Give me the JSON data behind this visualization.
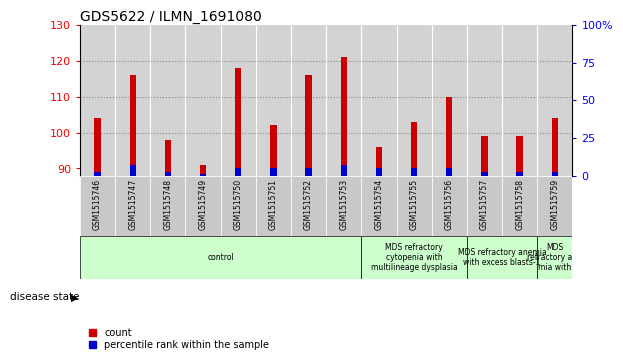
{
  "title": "GDS5622 / ILMN_1691080",
  "samples": [
    "GSM1515746",
    "GSM1515747",
    "GSM1515748",
    "GSM1515749",
    "GSM1515750",
    "GSM1515751",
    "GSM1515752",
    "GSM1515753",
    "GSM1515754",
    "GSM1515755",
    "GSM1515756",
    "GSM1515757",
    "GSM1515758",
    "GSM1515759"
  ],
  "counts": [
    104,
    116,
    98,
    91,
    118,
    102,
    116,
    121,
    96,
    103,
    110,
    99,
    99,
    104
  ],
  "percentile_ranks": [
    1,
    3,
    1,
    0.5,
    2,
    2,
    2,
    3,
    2,
    2,
    2,
    1,
    1,
    1
  ],
  "ymin": 88,
  "ymax": 130,
  "y_left_ticks": [
    90,
    100,
    110,
    120,
    130
  ],
  "y_right_ticks": [
    0,
    25,
    50,
    75,
    100
  ],
  "bar_color_count": "#cc0000",
  "bar_color_pct": "#0000cc",
  "plot_bg_color": "#d3d3d3",
  "sample_row_color": "#c8c8c8",
  "disease_groups": [
    {
      "label": "control",
      "start": 0,
      "end": 8,
      "color": "#ccffcc"
    },
    {
      "label": "MDS refractory\ncytopenia with\nmultilineage dysplasia",
      "start": 8,
      "end": 11,
      "color": "#ccffcc"
    },
    {
      "label": "MDS refractory anemia\nwith excess blasts-1",
      "start": 11,
      "end": 13,
      "color": "#ccffcc"
    },
    {
      "label": "MDS\nrefractory ane\nmia with",
      "start": 13,
      "end": 14,
      "color": "#ccffcc"
    }
  ],
  "legend_count": "count",
  "legend_pct": "percentile rank within the sample",
  "bar_width": 0.18
}
